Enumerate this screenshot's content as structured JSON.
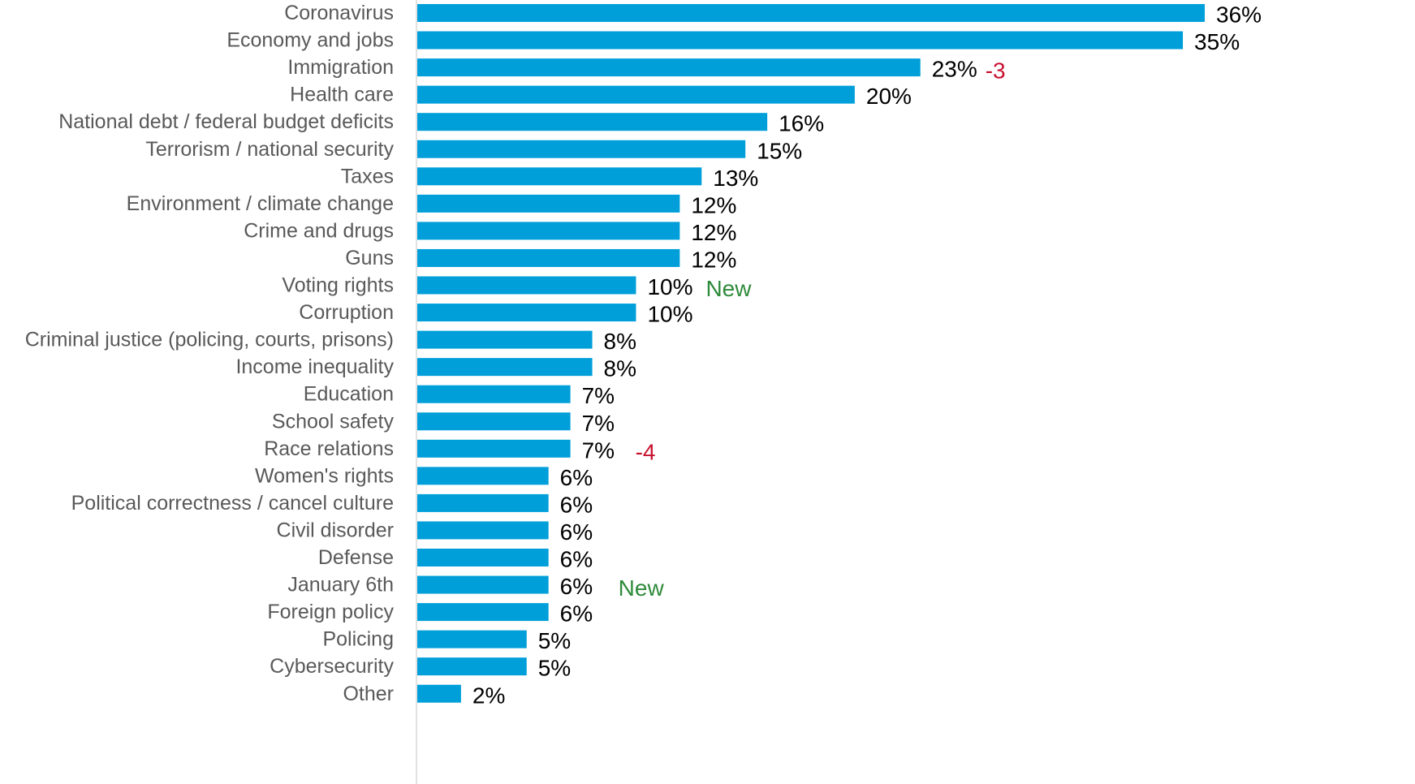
{
  "chart_data": {
    "type": "bar",
    "orientation": "horizontal",
    "title": "",
    "xlabel": "",
    "ylabel": "",
    "xlim": [
      0,
      36
    ],
    "grid": false,
    "legend": "none",
    "colors": {
      "bar": "#009fda",
      "axis": "#d9d9d9",
      "category_text": "#595959",
      "value_text": "#000000",
      "decrease_note": "#c8102e",
      "new_note": "#2e8b3a"
    },
    "categories": [
      "Coronavirus",
      "Economy and jobs",
      "Immigration",
      "Health care",
      "National debt / federal budget deficits",
      "Terrorism / national security",
      "Taxes",
      "Environment / climate change",
      "Crime and drugs",
      "Guns",
      "Voting rights",
      "Corruption",
      "Criminal justice (policing, courts, prisons)",
      "Income inequality",
      "Education",
      "School safety",
      "Race relations",
      "Women's rights",
      "Political correctness / cancel culture",
      "Civil disorder",
      "Defense",
      "January 6th",
      "Foreign policy",
      "Policing",
      "Cybersecurity",
      "Other"
    ],
    "values": [
      36,
      35,
      23,
      20,
      16,
      15,
      13,
      12,
      12,
      12,
      10,
      10,
      8,
      8,
      7,
      7,
      7,
      6,
      6,
      6,
      6,
      6,
      6,
      5,
      5,
      2
    ],
    "value_labels": [
      "36%",
      "35%",
      "23%",
      "20%",
      "16%",
      "15%",
      "13%",
      "12%",
      "12%",
      "12%",
      "10%",
      "10%",
      "8%",
      "8%",
      "7%",
      "7%",
      "7%",
      "6%",
      "6%",
      "6%",
      "6%",
      "6%",
      "6%",
      "5%",
      "5%",
      "2%"
    ],
    "annotations": [
      {
        "category_index": 2,
        "text": "-3",
        "kind": "decrease"
      },
      {
        "category_index": 10,
        "text": "New",
        "kind": "new"
      },
      {
        "category_index": 16,
        "text": "-4",
        "kind": "decrease"
      },
      {
        "category_index": 21,
        "text": "New",
        "kind": "new"
      }
    ]
  }
}
